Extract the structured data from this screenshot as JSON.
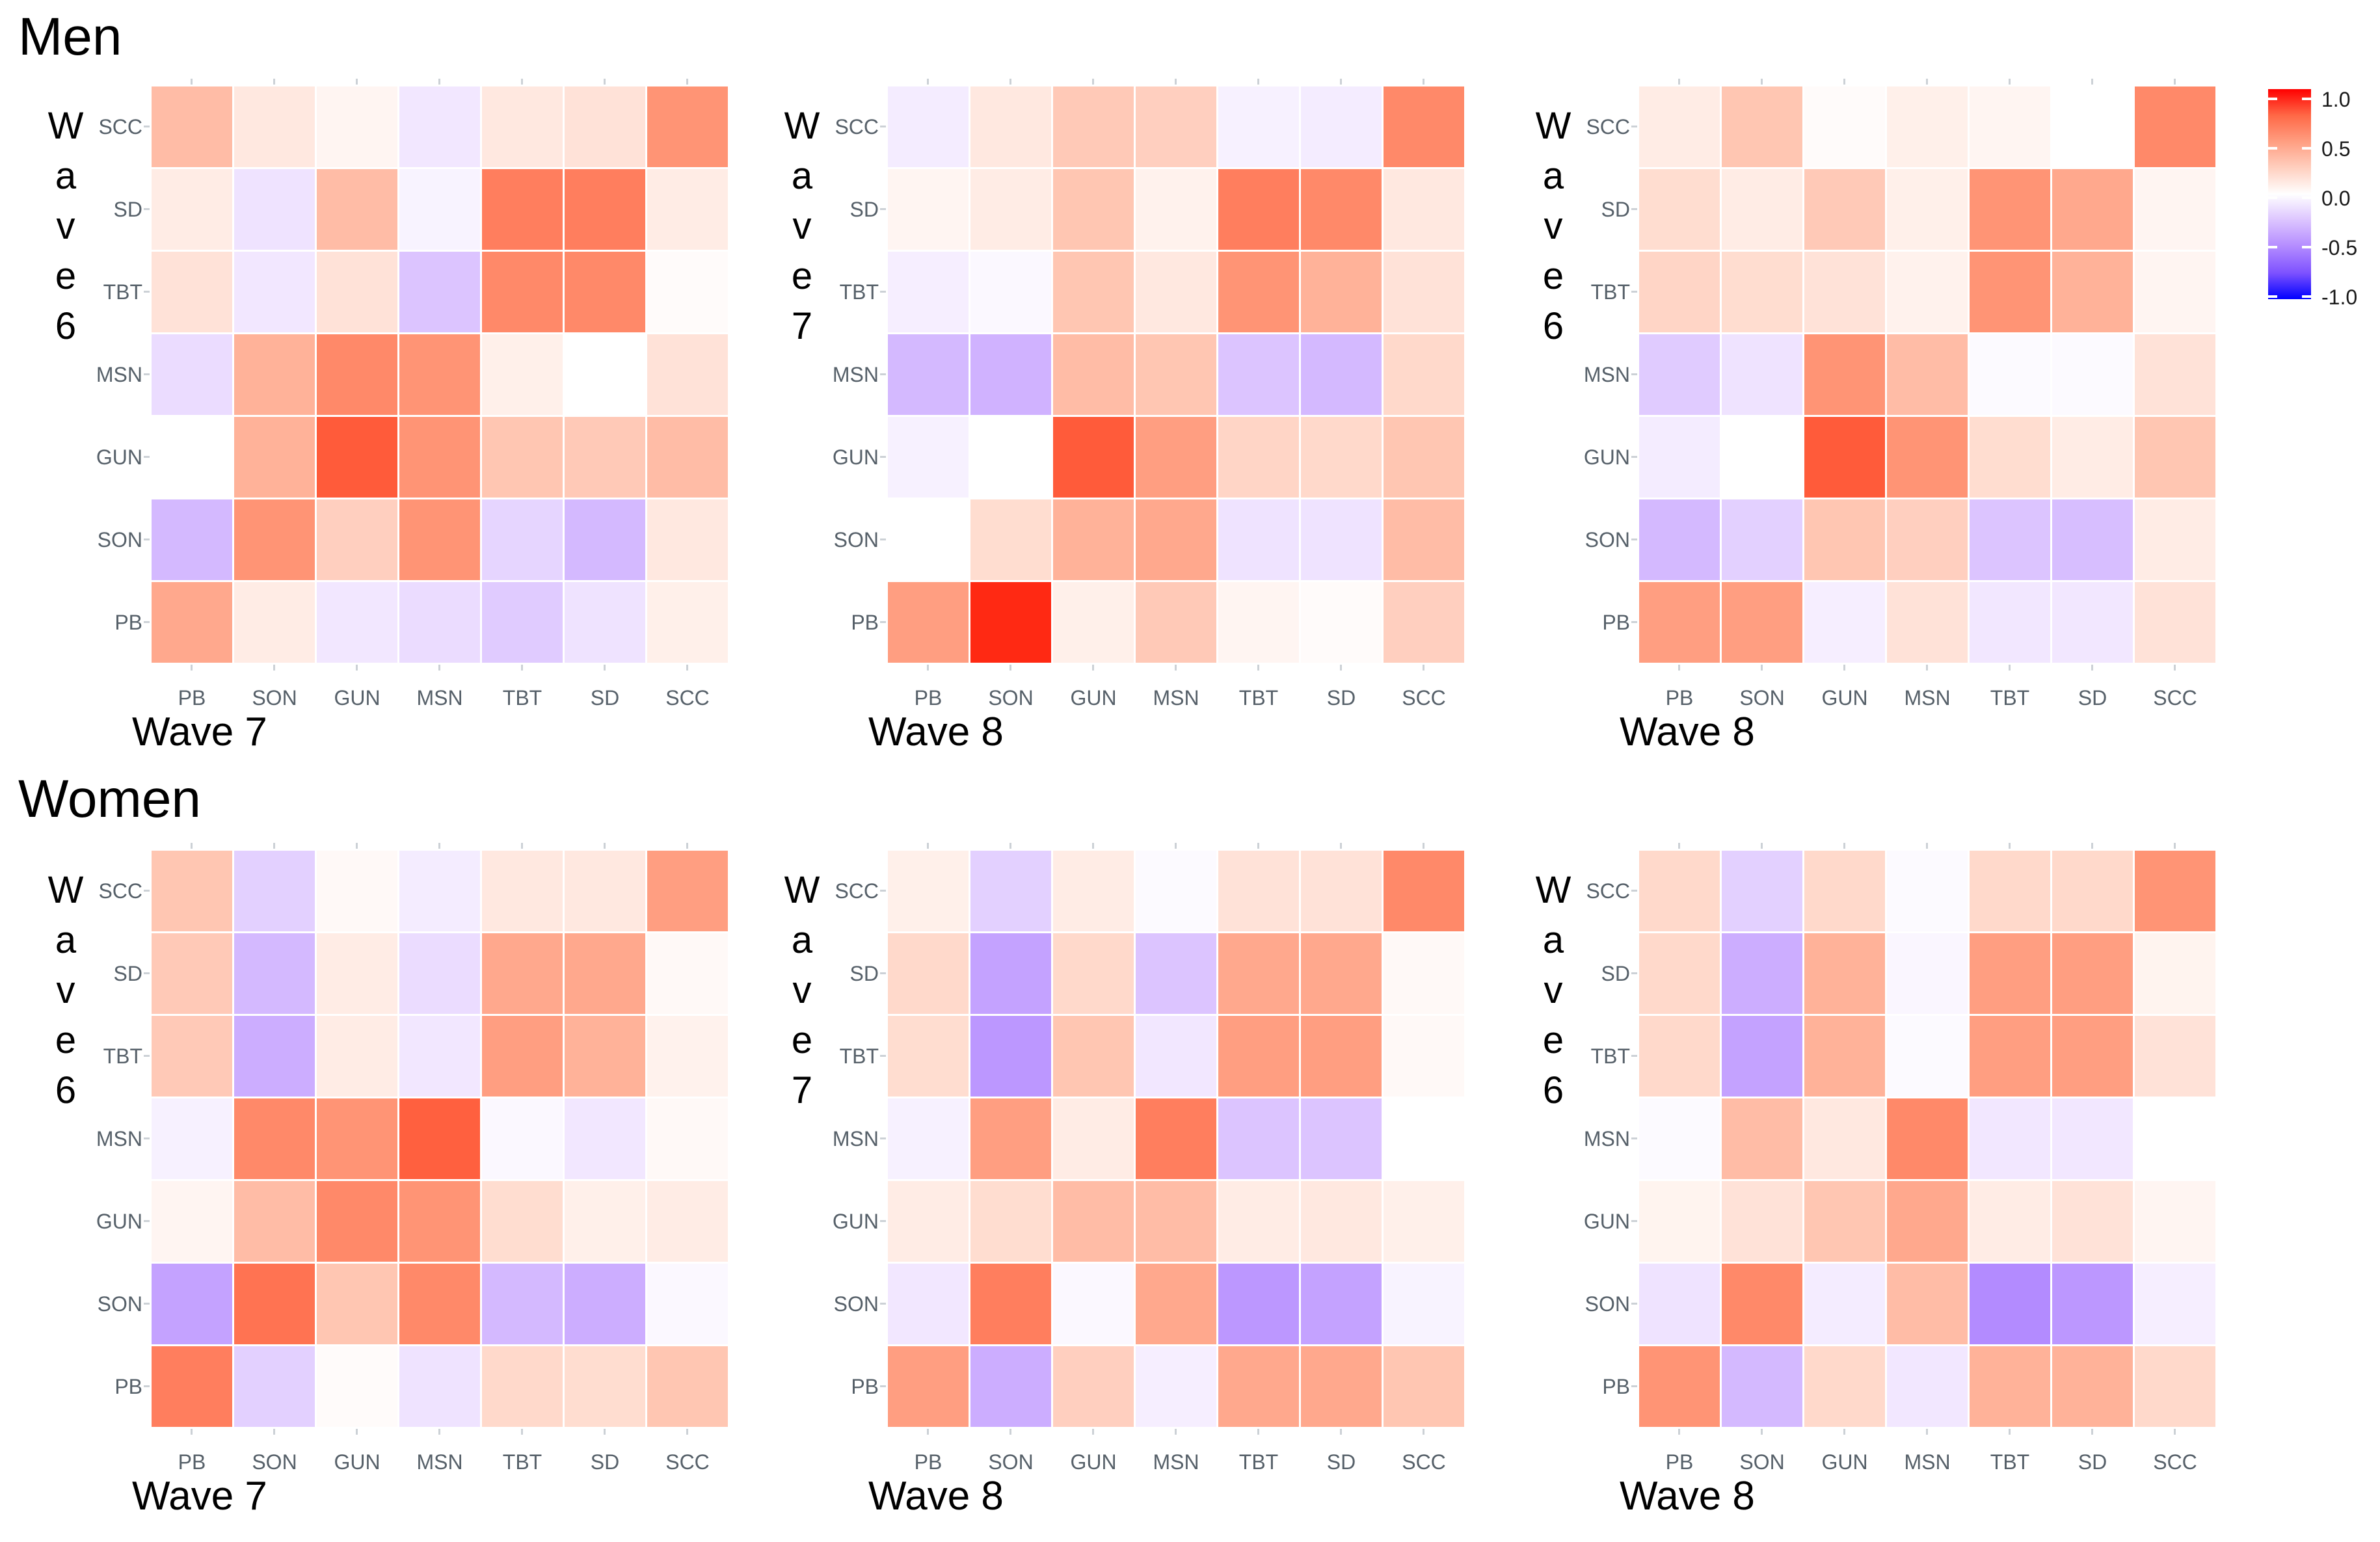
{
  "titles": {
    "men": "Men",
    "women": "Women"
  },
  "legend": {
    "ticks": [
      "1.0",
      "0.5",
      "0.0",
      "-0.5",
      "-1.0"
    ],
    "high_color": "#ff0000",
    "mid_color": "#ffffff",
    "low_color": "#0000ff",
    "domain": [
      -1,
      1
    ]
  },
  "axis_labels": {
    "rows_top_to_bottom": [
      "SCC",
      "SD",
      "TBT",
      "MSN",
      "GUN",
      "SON",
      "PB"
    ],
    "cols_left_to_right": [
      "PB",
      "SON",
      "GUN",
      "MSN",
      "TBT",
      "SD",
      "SCC"
    ]
  },
  "chart_data": [
    {
      "type": "heatmap",
      "section": "Men",
      "y_axis_title": "Wave 6",
      "x_axis_title": "Wave 7",
      "rows": [
        "SCC",
        "SD",
        "TBT",
        "MSN",
        "GUN",
        "SON",
        "PB"
      ],
      "cols": [
        "PB",
        "SON",
        "GUN",
        "MSN",
        "TBT",
        "SD",
        "SCC"
      ],
      "values": [
        [
          0.35,
          0.12,
          0.05,
          -0.1,
          0.12,
          0.15,
          0.55
        ],
        [
          0.1,
          -0.12,
          0.35,
          -0.05,
          0.65,
          0.65,
          0.1
        ],
        [
          0.15,
          -0.1,
          0.15,
          -0.25,
          0.6,
          0.6,
          0.02
        ],
        [
          -0.15,
          0.4,
          0.6,
          0.55,
          0.08,
          0.0,
          0.15
        ],
        [
          0.0,
          0.4,
          0.8,
          0.55,
          0.3,
          0.28,
          0.35
        ],
        [
          -0.3,
          0.55,
          0.25,
          0.55,
          -0.18,
          -0.3,
          0.12
        ],
        [
          0.45,
          0.1,
          -0.1,
          -0.15,
          -0.22,
          -0.12,
          0.08
        ]
      ]
    },
    {
      "type": "heatmap",
      "section": "Men",
      "y_axis_title": "Wave 7",
      "x_axis_title": "Wave 8",
      "rows": [
        "SCC",
        "SD",
        "TBT",
        "MSN",
        "GUN",
        "SON",
        "PB"
      ],
      "cols": [
        "PB",
        "SON",
        "GUN",
        "MSN",
        "TBT",
        "SD",
        "SCC"
      ],
      "values": [
        [
          -0.08,
          0.12,
          0.28,
          0.25,
          -0.06,
          -0.08,
          0.6
        ],
        [
          0.05,
          0.1,
          0.3,
          0.07,
          0.65,
          0.6,
          0.12
        ],
        [
          -0.07,
          -0.03,
          0.3,
          0.12,
          0.55,
          0.4,
          0.15
        ],
        [
          -0.3,
          -0.33,
          0.35,
          0.3,
          -0.25,
          -0.3,
          0.2
        ],
        [
          -0.06,
          0.0,
          0.8,
          0.5,
          0.22,
          0.2,
          0.3
        ],
        [
          0.0,
          0.18,
          0.4,
          0.45,
          -0.12,
          -0.12,
          0.35
        ],
        [
          0.5,
          0.95,
          0.08,
          0.28,
          0.05,
          0.02,
          0.25
        ]
      ]
    },
    {
      "type": "heatmap",
      "section": "Men",
      "y_axis_title": "Wave 6",
      "x_axis_title": "Wave 8",
      "rows": [
        "SCC",
        "SD",
        "TBT",
        "MSN",
        "GUN",
        "SON",
        "PB"
      ],
      "cols": [
        "PB",
        "SON",
        "GUN",
        "MSN",
        "TBT",
        "SD",
        "SCC"
      ],
      "values": [
        [
          0.1,
          0.3,
          0.02,
          0.08,
          0.05,
          0.0,
          0.6
        ],
        [
          0.18,
          0.1,
          0.28,
          0.08,
          0.55,
          0.45,
          0.05
        ],
        [
          0.22,
          0.18,
          0.15,
          0.07,
          0.55,
          0.4,
          0.05
        ],
        [
          -0.22,
          -0.12,
          0.55,
          0.35,
          -0.02,
          -0.02,
          0.15
        ],
        [
          -0.08,
          0.0,
          0.8,
          0.55,
          0.18,
          0.1,
          0.3
        ],
        [
          -0.3,
          -0.2,
          0.3,
          0.25,
          -0.25,
          -0.28,
          0.1
        ],
        [
          0.5,
          0.5,
          -0.07,
          0.15,
          -0.1,
          -0.1,
          0.15
        ]
      ]
    },
    {
      "type": "heatmap",
      "section": "Women",
      "y_axis_title": "Wave 6",
      "x_axis_title": "Wave 7",
      "rows": [
        "SCC",
        "SD",
        "TBT",
        "MSN",
        "GUN",
        "SON",
        "PB"
      ],
      "cols": [
        "PB",
        "SON",
        "GUN",
        "MSN",
        "TBT",
        "SD",
        "SCC"
      ],
      "values": [
        [
          0.3,
          -0.2,
          0.03,
          -0.08,
          0.12,
          0.12,
          0.5
        ],
        [
          0.28,
          -0.3,
          0.1,
          -0.15,
          0.45,
          0.45,
          0.03
        ],
        [
          0.28,
          -0.35,
          0.1,
          -0.1,
          0.5,
          0.4,
          0.07
        ],
        [
          -0.06,
          0.6,
          0.55,
          0.78,
          -0.03,
          -0.1,
          0.03
        ],
        [
          0.05,
          0.35,
          0.6,
          0.55,
          0.18,
          0.08,
          0.1
        ],
        [
          -0.4,
          0.7,
          0.3,
          0.6,
          -0.3,
          -0.35,
          -0.03
        ],
        [
          0.65,
          -0.2,
          0.02,
          -0.12,
          0.2,
          0.18,
          0.3
        ]
      ]
    },
    {
      "type": "heatmap",
      "section": "Women",
      "y_axis_title": "Wave 7",
      "x_axis_title": "Wave 8",
      "rows": [
        "SCC",
        "SD",
        "TBT",
        "MSN",
        "GUN",
        "SON",
        "PB"
      ],
      "cols": [
        "PB",
        "SON",
        "GUN",
        "MSN",
        "TBT",
        "SD",
        "SCC"
      ],
      "values": [
        [
          0.08,
          -0.2,
          0.1,
          -0.02,
          0.15,
          0.15,
          0.6
        ],
        [
          0.2,
          -0.4,
          0.2,
          -0.25,
          0.45,
          0.45,
          0.03
        ],
        [
          0.18,
          -0.45,
          0.3,
          -0.1,
          0.5,
          0.5,
          0.03
        ],
        [
          -0.06,
          0.5,
          0.1,
          0.65,
          -0.25,
          -0.25,
          0.0
        ],
        [
          0.1,
          0.18,
          0.35,
          0.35,
          0.1,
          0.12,
          0.08
        ],
        [
          -0.1,
          0.65,
          -0.03,
          0.45,
          -0.45,
          -0.4,
          -0.05
        ],
        [
          0.5,
          -0.35,
          0.25,
          -0.07,
          0.45,
          0.45,
          0.3
        ]
      ]
    },
    {
      "type": "heatmap",
      "section": "Women",
      "y_axis_title": "Wave 6",
      "x_axis_title": "Wave 8",
      "rows": [
        "SCC",
        "SD",
        "TBT",
        "MSN",
        "GUN",
        "SON",
        "PB"
      ],
      "cols": [
        "PB",
        "SON",
        "GUN",
        "MSN",
        "TBT",
        "SD",
        "SCC"
      ],
      "values": [
        [
          0.2,
          -0.2,
          0.2,
          -0.02,
          0.2,
          0.2,
          0.55
        ],
        [
          0.2,
          -0.35,
          0.4,
          -0.04,
          0.5,
          0.5,
          0.06
        ],
        [
          0.2,
          -0.4,
          0.4,
          -0.02,
          0.5,
          0.5,
          0.15
        ],
        [
          -0.02,
          0.35,
          0.12,
          0.6,
          -0.1,
          -0.1,
          0.0
        ],
        [
          0.06,
          0.15,
          0.3,
          0.45,
          0.1,
          0.15,
          0.05
        ],
        [
          -0.12,
          0.6,
          -0.08,
          0.35,
          -0.5,
          -0.45,
          -0.07
        ],
        [
          0.55,
          -0.3,
          0.2,
          -0.1,
          0.4,
          0.4,
          0.2
        ]
      ]
    }
  ]
}
